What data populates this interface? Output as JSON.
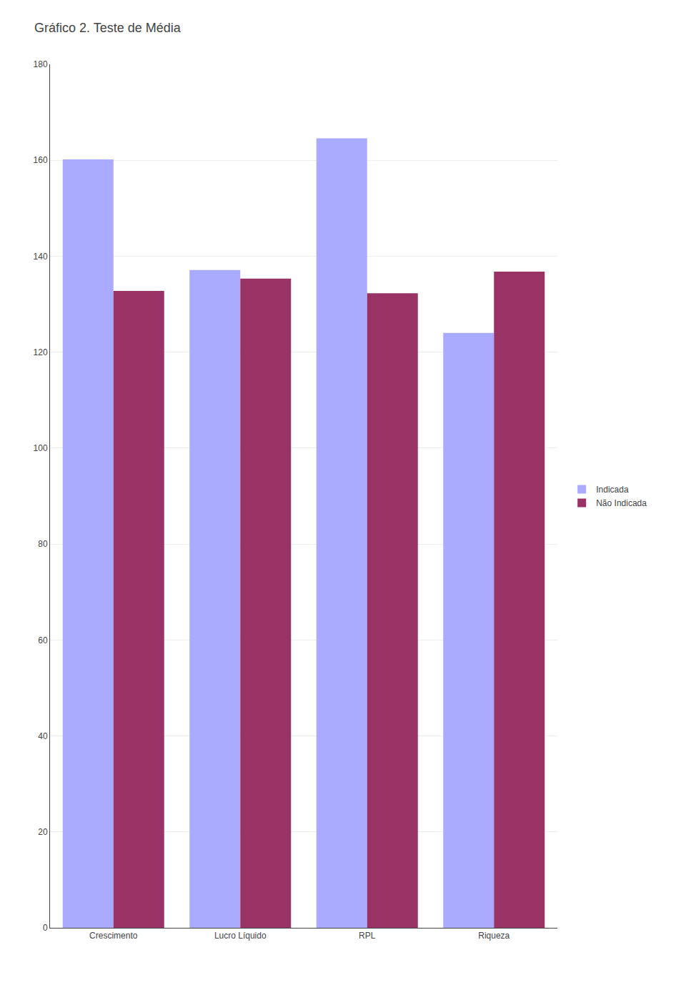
{
  "chart_data": {
    "type": "bar",
    "title": "Gráfico 2. Teste de Média",
    "categories": [
      "Crescimento",
      "Lucro Líquido",
      "RPL",
      "Riqueza"
    ],
    "series": [
      {
        "name": "Indicada",
        "color": "#aaaaff",
        "values": [
          160.19,
          137.13,
          164.59,
          124.02
        ]
      },
      {
        "name": "Não Indicada",
        "color": "#993366",
        "values": [
          132.76,
          135.32,
          132.27,
          136.78
        ]
      }
    ],
    "ylim": [
      0,
      180
    ],
    "yticks": [
      0,
      20,
      40,
      60,
      80,
      100,
      120,
      140,
      160,
      180
    ],
    "grid": true,
    "legend": "right"
  }
}
